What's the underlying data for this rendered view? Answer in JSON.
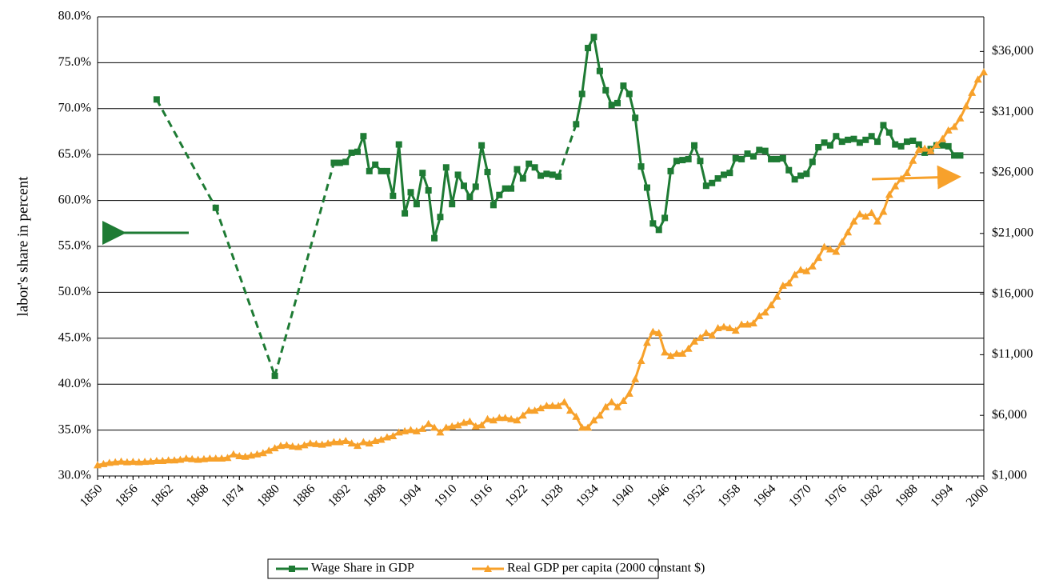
{
  "chart_data": {
    "type": "line",
    "ylabel": "labor's share in percent",
    "xlim": [
      1850,
      2000
    ],
    "xticks": [
      1850,
      1856,
      1862,
      1868,
      1874,
      1880,
      1886,
      1892,
      1898,
      1904,
      1910,
      1916,
      1922,
      1928,
      1934,
      1940,
      1946,
      1952,
      1958,
      1964,
      1970,
      1976,
      1982,
      1988,
      1994,
      2000
    ],
    "ylim": [
      30,
      80
    ],
    "yticks": [
      {
        "value": 30,
        "label": "30.0%"
      },
      {
        "value": 35,
        "label": "35.0%"
      },
      {
        "value": 40,
        "label": "40.0%"
      },
      {
        "value": 45,
        "label": "45.0%"
      },
      {
        "value": 50,
        "label": "50.0%"
      },
      {
        "value": 55,
        "label": "55.0%"
      },
      {
        "value": 60,
        "label": "60.0%"
      },
      {
        "value": 65,
        "label": "65.0%"
      },
      {
        "value": 70,
        "label": "70.0%"
      },
      {
        "value": 75,
        "label": "75.0%"
      },
      {
        "value": 80,
        "label": "80.0%"
      }
    ],
    "y2lim": [
      1000,
      38860
    ],
    "y2ticks": [
      {
        "value": 1000,
        "label": "$1,000"
      },
      {
        "value": 6000,
        "label": "$6,000"
      },
      {
        "value": 11000,
        "label": "$11,000"
      },
      {
        "value": 16000,
        "label": "$16,000"
      },
      {
        "value": 21000,
        "label": "$21,000"
      },
      {
        "value": 26000,
        "label": "$26,000"
      },
      {
        "value": 31000,
        "label": "$31,000"
      },
      {
        "value": 36000,
        "label": "$36,000"
      }
    ],
    "grid": true,
    "legend": "bottom",
    "x": [
      1850,
      1851,
      1852,
      1853,
      1854,
      1855,
      1856,
      1857,
      1858,
      1859,
      1860,
      1861,
      1862,
      1863,
      1864,
      1865,
      1866,
      1867,
      1868,
      1869,
      1870,
      1871,
      1872,
      1873,
      1874,
      1875,
      1876,
      1877,
      1878,
      1879,
      1880,
      1881,
      1882,
      1883,
      1884,
      1885,
      1886,
      1887,
      1888,
      1889,
      1890,
      1891,
      1892,
      1893,
      1894,
      1895,
      1896,
      1897,
      1898,
      1899,
      1900,
      1901,
      1902,
      1903,
      1904,
      1905,
      1906,
      1907,
      1908,
      1909,
      1910,
      1911,
      1912,
      1913,
      1914,
      1915,
      1916,
      1917,
      1918,
      1919,
      1920,
      1921,
      1922,
      1923,
      1924,
      1925,
      1926,
      1927,
      1928,
      1929,
      1930,
      1931,
      1932,
      1933,
      1934,
      1935,
      1936,
      1937,
      1938,
      1939,
      1940,
      1941,
      1942,
      1943,
      1944,
      1945,
      1946,
      1947,
      1948,
      1949,
      1950,
      1951,
      1952,
      1953,
      1954,
      1955,
      1956,
      1957,
      1958,
      1959,
      1960,
      1961,
      1962,
      1963,
      1964,
      1965,
      1966,
      1967,
      1968,
      1969,
      1970,
      1971,
      1972,
      1973,
      1974,
      1975,
      1976,
      1977,
      1978,
      1979,
      1980,
      1981,
      1982,
      1983,
      1984,
      1985,
      1986,
      1987,
      1988,
      1989,
      1990,
      1991,
      1992,
      1993,
      1994,
      1995,
      1996,
      1997,
      1998,
      1999,
      2000
    ],
    "series": [
      {
        "name": "Wage Share in GDP",
        "color": "#1e7b34",
        "marker": "square",
        "gap_line": "dashed",
        "values": [
          null,
          null,
          null,
          null,
          null,
          null,
          null,
          null,
          null,
          null,
          71.0,
          null,
          null,
          null,
          null,
          null,
          null,
          null,
          null,
          null,
          59.2,
          null,
          null,
          null,
          null,
          null,
          null,
          null,
          null,
          null,
          40.9,
          null,
          null,
          null,
          null,
          null,
          null,
          null,
          null,
          null,
          64.1,
          64.1,
          64.2,
          65.2,
          65.3,
          67.0,
          63.2,
          63.9,
          63.2,
          63.2,
          60.5,
          66.1,
          58.6,
          60.9,
          59.6,
          63.0,
          61.1,
          55.9,
          58.2,
          63.6,
          59.6,
          62.8,
          61.6,
          60.4,
          61.5,
          66.0,
          63.1,
          59.5,
          60.6,
          61.3,
          61.3,
          63.4,
          62.4,
          64.0,
          63.6,
          62.7,
          62.9,
          62.8,
          62.6,
          null,
          null,
          68.3,
          71.6,
          76.6,
          77.8,
          74.1,
          72.0,
          70.4,
          70.6,
          72.5,
          71.6,
          69.0,
          63.7,
          61.4,
          57.5,
          56.8,
          58.1,
          63.2,
          64.3,
          64.4,
          64.5,
          66.0,
          64.3,
          61.6,
          61.9,
          62.4,
          62.8,
          63.0,
          64.6,
          64.5,
          65.1,
          64.8,
          65.5,
          65.4,
          64.5,
          64.5,
          64.6,
          63.3,
          62.3,
          62.7,
          62.9,
          64.2,
          65.8,
          66.3,
          66.0,
          67.0,
          66.4,
          66.6,
          66.7,
          66.3,
          66.6,
          67.0,
          66.4,
          68.2,
          67.4,
          66.1,
          65.9,
          66.4,
          66.5,
          66.1,
          65.2,
          65.6,
          66.0,
          66.0,
          65.9,
          64.9,
          64.9,
          null,
          null,
          null,
          null
        ]
      },
      {
        "name": "Real GDP per capita (2000 constant $)",
        "color": "#f7a12b",
        "marker": "triangle",
        "axis": "y2",
        "values": [
          1900,
          2000,
          2100,
          2150,
          2200,
          2150,
          2180,
          2150,
          2180,
          2200,
          2250,
          2250,
          2300,
          2300,
          2350,
          2450,
          2400,
          2350,
          2400,
          2450,
          2450,
          2450,
          2500,
          2800,
          2650,
          2600,
          2700,
          2800,
          2900,
          3100,
          3300,
          3500,
          3550,
          3450,
          3400,
          3550,
          3700,
          3650,
          3600,
          3700,
          3800,
          3800,
          3900,
          3700,
          3500,
          3800,
          3700,
          3900,
          4000,
          4200,
          4300,
          4600,
          4700,
          4800,
          4700,
          4900,
          5300,
          5000,
          4600,
          5000,
          5100,
          5200,
          5400,
          5500,
          5100,
          5200,
          5700,
          5600,
          5800,
          5800,
          5700,
          5600,
          6000,
          6400,
          6400,
          6600,
          6800,
          6800,
          6800,
          7100,
          6400,
          5900,
          5000,
          5000,
          5600,
          6000,
          6700,
          7100,
          6700,
          7200,
          7800,
          9000,
          10500,
          12000,
          12900,
          12800,
          11200,
          10900,
          11100,
          11100,
          11500,
          12100,
          12400,
          12800,
          12600,
          13200,
          13300,
          13200,
          13000,
          13500,
          13500,
          13600,
          14200,
          14500,
          15100,
          15800,
          16700,
          16900,
          17600,
          18000,
          17900,
          18300,
          19000,
          19900,
          19700,
          19500,
          20300,
          21100,
          22000,
          22600,
          22400,
          22700,
          22000,
          22800,
          24200,
          24900,
          25500,
          26000,
          27000,
          27900,
          28000,
          27800,
          28300,
          28800,
          29500,
          29800,
          30500,
          31500,
          32600,
          33700,
          34300
        ]
      }
    ]
  }
}
